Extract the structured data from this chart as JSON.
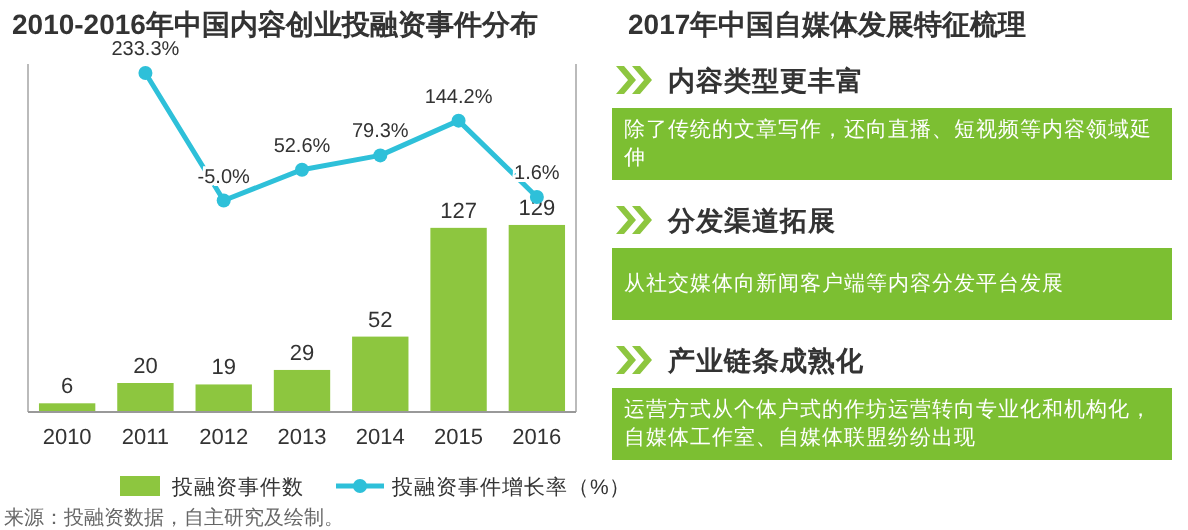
{
  "chart_data": [
    {
      "type": "bar",
      "title": "2010-2016年中国内容创业投融资事件分布",
      "categories": [
        "2010",
        "2011",
        "2012",
        "2013",
        "2014",
        "2015",
        "2016"
      ],
      "series": [
        {
          "name": "投融资事件数",
          "type": "bar",
          "color": "#8dc63f",
          "values": [
            6,
            20,
            19,
            29,
            52,
            127,
            129
          ],
          "value_labels": [
            "6",
            "20",
            "19",
            "29",
            "52",
            "127",
            "129"
          ]
        },
        {
          "name": "投融资事件增长率（%）",
          "type": "line",
          "axis": "y2",
          "color": "#2ec0d9",
          "values": [
            null,
            233.3,
            -5.0,
            52.6,
            79.3,
            144.2,
            1.6
          ],
          "value_labels": [
            null,
            "233.3%",
            "-5.0%",
            "52.6%",
            "79.3%",
            "144.2%",
            "1.6%"
          ]
        }
      ],
      "ylim": [
        0,
        240
      ],
      "y2lim": [
        -400,
        250
      ],
      "legend": "bottom",
      "marker": "circle",
      "annotations": [
        "来源：投融资数据，自主研究及绘制。"
      ]
    },
    {
      "type": "other",
      "title": "2017年中国自媒体发展特征梳理",
      "annotations": [
        "内容类型更丰富",
        "除了传统的文章写作，还向直播、短视频等内容领域延伸",
        "分发渠道拓展",
        "从社交媒体向新闻客户端等内容分发平台发展",
        "产业链条成熟化",
        "运营方式从个体户式的作坊运营转向专业化和机构化，自媒体工作室、自媒体联盟纷纷出现"
      ]
    }
  ]
}
